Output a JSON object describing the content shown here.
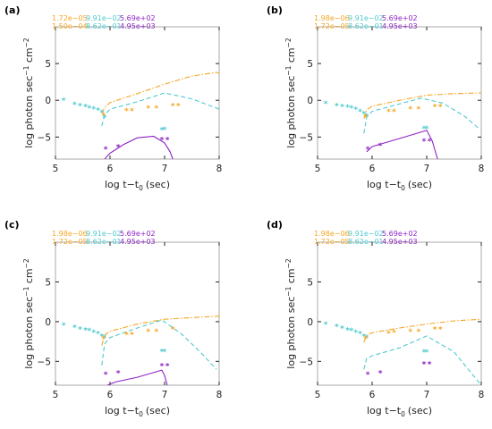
{
  "chart_data": [
    {
      "panel_label": "(a)",
      "type": "line",
      "xlabel_base": "log t−t",
      "xlabel_sub": "0",
      "xlabel_unit": "(sec)",
      "ylabel_main": "log photon sec",
      "ylabel_sup1": "−1",
      "ylabel_mid": " cm",
      "ylabel_sup2": "−2",
      "xlim": [
        5,
        8
      ],
      "ylim": [
        -8,
        10
      ],
      "xticks": [
        "5",
        "6",
        "7",
        "8"
      ],
      "yticks": [
        {
          "value": -5,
          "label": "−5"
        },
        {
          "value": 0,
          "label": "0"
        },
        {
          "value": 5,
          "label": "5"
        }
      ],
      "legend": {
        "row1": [
          "1.72e−05",
          "9.91e−02",
          "5.69e+02"
        ],
        "row2": [
          "1.50e−04",
          "8.62e−01",
          "4.95e+03"
        ]
      },
      "series": [
        {
          "color": "#f5a623",
          "style": "dashdot",
          "points": [
            [
              5.85,
              -1.8
            ],
            [
              5.9,
              -1.0
            ],
            [
              6.0,
              -0.3
            ],
            [
              6.5,
              0.9
            ],
            [
              7.0,
              2.2
            ],
            [
              7.5,
              3.3
            ],
            [
              7.95,
              3.8
            ],
            [
              8.0,
              3.7
            ]
          ]
        },
        {
          "color": "#4fc9cf",
          "style": "dash",
          "points": [
            [
              5.85,
              -3.5
            ],
            [
              5.9,
              -2.0
            ],
            [
              6.0,
              -1.2
            ],
            [
              6.5,
              -0.2
            ],
            [
              7.0,
              1.0
            ],
            [
              7.5,
              0.2
            ],
            [
              8.0,
              -1.2
            ]
          ]
        },
        {
          "color": "#8e24c4",
          "style": "solid",
          "points": [
            [
              5.9,
              -8.0
            ],
            [
              6.0,
              -7.2
            ],
            [
              6.25,
              -6.0
            ],
            [
              6.5,
              -5.1
            ],
            [
              6.8,
              -4.9
            ],
            [
              7.0,
              -5.8
            ],
            [
              7.1,
              -7.0
            ],
            [
              7.15,
              -8.0
            ]
          ]
        }
      ],
      "markers": [
        {
          "color": "#4fc9cf",
          "points": [
            [
              5.15,
              0.0
            ],
            [
              5.35,
              -0.5
            ],
            [
              5.45,
              -0.7
            ],
            [
              5.55,
              -0.8
            ],
            [
              5.62,
              -1.0
            ],
            [
              5.7,
              -1.1
            ],
            [
              5.78,
              -1.3
            ],
            [
              5.85,
              -1.6
            ],
            [
              5.9,
              -2.3
            ],
            [
              6.95,
              -4.0
            ],
            [
              7.0,
              -3.9
            ]
          ]
        },
        {
          "color": "#f5a623",
          "points": [
            [
              5.88,
              -2.0
            ],
            [
              6.3,
              -1.4
            ],
            [
              6.4,
              -1.4
            ],
            [
              6.7,
              -1.0
            ],
            [
              6.85,
              -1.0
            ],
            [
              7.15,
              -0.7
            ],
            [
              7.25,
              -0.7
            ]
          ]
        },
        {
          "color": "#8e24c4",
          "points": [
            [
              5.92,
              -6.6
            ],
            [
              6.15,
              -6.3
            ],
            [
              6.95,
              -5.3
            ],
            [
              7.05,
              -5.3
            ]
          ]
        }
      ]
    },
    {
      "panel_label": "(b)",
      "type": "line",
      "xlabel_base": "log t−t",
      "xlabel_sub": "0",
      "xlabel_unit": "(sec)",
      "ylabel_main": "log photon sec",
      "ylabel_sup1": "−1",
      "ylabel_mid": " cm",
      "ylabel_sup2": "−2",
      "xlim": [
        5,
        8
      ],
      "ylim": [
        -8,
        10
      ],
      "xticks": [
        "5",
        "6",
        "7",
        "8"
      ],
      "yticks": [
        {
          "value": -5,
          "label": "−5"
        },
        {
          "value": 0,
          "label": "0"
        },
        {
          "value": 5,
          "label": "5"
        }
      ],
      "legend": {
        "row1": [
          "1.98e−06",
          "9.91e−02",
          "5.69e+02"
        ],
        "row2": [
          "1.72e−05",
          "8.62e−01",
          "4.95e+03"
        ]
      },
      "series": [
        {
          "color": "#f5a623",
          "style": "dashdot",
          "points": [
            [
              5.85,
              -2.5
            ],
            [
              5.9,
              -1.3
            ],
            [
              6.0,
              -0.8
            ],
            [
              6.5,
              0.0
            ],
            [
              7.0,
              0.7
            ],
            [
              7.5,
              0.9
            ],
            [
              8.0,
              1.0
            ]
          ]
        },
        {
          "color": "#4fc9cf",
          "style": "dash",
          "points": [
            [
              5.85,
              -4.5
            ],
            [
              5.9,
              -2.3
            ],
            [
              6.0,
              -1.5
            ],
            [
              6.5,
              -0.5
            ],
            [
              6.9,
              0.3
            ],
            [
              7.3,
              -0.4
            ],
            [
              7.7,
              -2.2
            ],
            [
              7.95,
              -3.8
            ]
          ]
        },
        {
          "color": "#8e24c4",
          "style": "solid",
          "points": [
            [
              5.9,
              -7.0
            ],
            [
              6.0,
              -6.3
            ],
            [
              6.5,
              -5.2
            ],
            [
              7.0,
              -4.1
            ],
            [
              7.1,
              -5.5
            ],
            [
              7.2,
              -8.0
            ]
          ]
        }
      ],
      "markers": [
        {
          "color": "#4fc9cf",
          "points": [
            [
              5.15,
              -0.4
            ],
            [
              5.35,
              -0.7
            ],
            [
              5.45,
              -0.8
            ],
            [
              5.55,
              -0.9
            ],
            [
              5.62,
              -1.0
            ],
            [
              5.7,
              -1.2
            ],
            [
              5.78,
              -1.5
            ],
            [
              5.85,
              -1.8
            ],
            [
              5.9,
              -2.1
            ],
            [
              6.95,
              -3.8
            ],
            [
              7.0,
              -3.8
            ]
          ]
        },
        {
          "color": "#f5a623",
          "points": [
            [
              5.88,
              -2.2
            ],
            [
              6.3,
              -1.5
            ],
            [
              6.4,
              -1.5
            ],
            [
              6.7,
              -1.1
            ],
            [
              6.85,
              -1.1
            ],
            [
              7.15,
              -0.8
            ],
            [
              7.25,
              -0.8
            ]
          ]
        },
        {
          "color": "#8e24c4",
          "points": [
            [
              5.92,
              -6.6
            ],
            [
              6.15,
              -6.1
            ],
            [
              6.95,
              -5.5
            ],
            [
              7.05,
              -5.5
            ]
          ]
        }
      ]
    },
    {
      "panel_label": "(c)",
      "type": "line",
      "xlabel_base": "log t−t",
      "xlabel_sub": "0",
      "xlabel_unit": "(sec)",
      "ylabel_main": "log photon sec",
      "ylabel_sup1": "−1",
      "ylabel_mid": " cm",
      "ylabel_sup2": "−2",
      "xlim": [
        5,
        8
      ],
      "ylim": [
        -8,
        10
      ],
      "xticks": [
        "5",
        "6",
        "7",
        "8"
      ],
      "yticks": [
        {
          "value": -5,
          "label": "−5"
        },
        {
          "value": 0,
          "label": "0"
        },
        {
          "value": 5,
          "label": "5"
        }
      ],
      "legend": {
        "row1": [
          "1.98e−06",
          "9.91e−02",
          "5.69e+02"
        ],
        "row2": [
          "1.72e−05",
          "8.62e−01",
          "4.95e+03"
        ]
      },
      "series": [
        {
          "color": "#f5a623",
          "style": "dashdot",
          "points": [
            [
              5.85,
              -3.0
            ],
            [
              5.9,
              -1.7
            ],
            [
              6.0,
              -1.2
            ],
            [
              6.5,
              -0.3
            ],
            [
              7.0,
              0.3
            ],
            [
              7.5,
              0.5
            ],
            [
              8.0,
              0.7
            ]
          ]
        },
        {
          "color": "#4fc9cf",
          "style": "dash",
          "points": [
            [
              5.85,
              -5.5
            ],
            [
              5.9,
              -2.8
            ],
            [
              6.0,
              -2.0
            ],
            [
              6.5,
              -0.8
            ],
            [
              6.95,
              0.2
            ],
            [
              7.3,
              -1.5
            ],
            [
              7.65,
              -3.8
            ],
            [
              7.95,
              -6.0
            ]
          ]
        },
        {
          "color": "#8e24c4",
          "style": "solid",
          "points": [
            [
              5.95,
              -8.0
            ],
            [
              6.1,
              -7.6
            ],
            [
              6.5,
              -7.0
            ],
            [
              6.95,
              -6.1
            ],
            [
              7.0,
              -6.8
            ],
            [
              7.05,
              -8.0
            ]
          ]
        }
      ],
      "markers": [
        {
          "color": "#4fc9cf",
          "points": [
            [
              5.15,
              -0.4
            ],
            [
              5.35,
              -0.7
            ],
            [
              5.45,
              -0.9
            ],
            [
              5.55,
              -1.0
            ],
            [
              5.62,
              -1.1
            ],
            [
              5.7,
              -1.3
            ],
            [
              5.78,
              -1.5
            ],
            [
              5.85,
              -1.8
            ],
            [
              5.9,
              -2.0
            ],
            [
              6.95,
              -3.7
            ],
            [
              7.0,
              -3.7
            ]
          ]
        },
        {
          "color": "#f5a623",
          "points": [
            [
              5.88,
              -2.1
            ],
            [
              6.3,
              -1.6
            ],
            [
              6.4,
              -1.6
            ],
            [
              6.7,
              -1.2
            ],
            [
              6.85,
              -1.2
            ],
            [
              7.15,
              -0.9
            ]
          ]
        },
        {
          "color": "#8e24c4",
          "points": [
            [
              5.92,
              -6.6
            ],
            [
              6.15,
              -6.4
            ],
            [
              6.95,
              -5.5
            ],
            [
              7.05,
              -5.5
            ]
          ]
        }
      ]
    },
    {
      "panel_label": "(d)",
      "type": "line",
      "xlabel_base": "log t−t",
      "xlabel_sub": "0",
      "xlabel_unit": "(sec)",
      "ylabel_main": "log photon sec",
      "ylabel_sup1": "−1",
      "ylabel_mid": " cm",
      "ylabel_sup2": "−2",
      "xlim": [
        5,
        8
      ],
      "ylim": [
        -8,
        10
      ],
      "xticks": [
        "5",
        "6",
        "7",
        "8"
      ],
      "yticks": [
        {
          "value": -5,
          "label": "−5"
        },
        {
          "value": 0,
          "label": "0"
        },
        {
          "value": 5,
          "label": "5"
        }
      ],
      "legend": {
        "row1": [
          "1.98e−06",
          "9.91e−02",
          "5.69e+02"
        ],
        "row2": [
          "1.72e−05",
          "8.62e−01",
          "4.95e+03"
        ]
      },
      "series": [
        {
          "color": "#f5a623",
          "style": "dashdot",
          "points": [
            [
              5.85,
              -2.6
            ],
            [
              5.9,
              -1.7
            ],
            [
              6.0,
              -1.4
            ],
            [
              6.5,
              -0.8
            ],
            [
              7.0,
              -0.3
            ],
            [
              7.5,
              0.1
            ],
            [
              8.0,
              0.3
            ]
          ]
        },
        {
          "color": "#4fc9cf",
          "style": "dash",
          "points": [
            [
              5.85,
              -6.0
            ],
            [
              5.9,
              -4.6
            ],
            [
              6.0,
              -4.3
            ],
            [
              6.5,
              -3.3
            ],
            [
              7.0,
              -1.8
            ],
            [
              7.5,
              -3.8
            ],
            [
              8.0,
              -8.0
            ]
          ]
        }
      ],
      "markers": [
        {
          "color": "#4fc9cf",
          "points": [
            [
              5.15,
              -0.3
            ],
            [
              5.35,
              -0.6
            ],
            [
              5.45,
              -0.8
            ],
            [
              5.55,
              -1.0
            ],
            [
              5.62,
              -1.1
            ],
            [
              5.7,
              -1.3
            ],
            [
              5.78,
              -1.5
            ],
            [
              5.85,
              -1.8
            ],
            [
              5.9,
              -2.0
            ],
            [
              6.95,
              -3.8
            ],
            [
              7.0,
              -3.8
            ]
          ]
        },
        {
          "color": "#f5a623",
          "points": [
            [
              5.88,
              -2.1
            ],
            [
              6.3,
              -1.4
            ],
            [
              6.4,
              -1.3
            ],
            [
              6.7,
              -1.2
            ],
            [
              6.85,
              -1.2
            ],
            [
              7.15,
              -0.9
            ],
            [
              7.25,
              -0.9
            ]
          ]
        },
        {
          "color": "#8e24c4",
          "points": [
            [
              5.92,
              -6.6
            ],
            [
              6.15,
              -6.4
            ],
            [
              6.95,
              -5.3
            ],
            [
              7.05,
              -5.3
            ]
          ]
        }
      ]
    }
  ],
  "colors": {
    "orange": "#f5a623",
    "cyan": "#4fc9cf",
    "purple": "#8e24c4",
    "axis": "#222222",
    "frame": "#aaaaaa"
  }
}
